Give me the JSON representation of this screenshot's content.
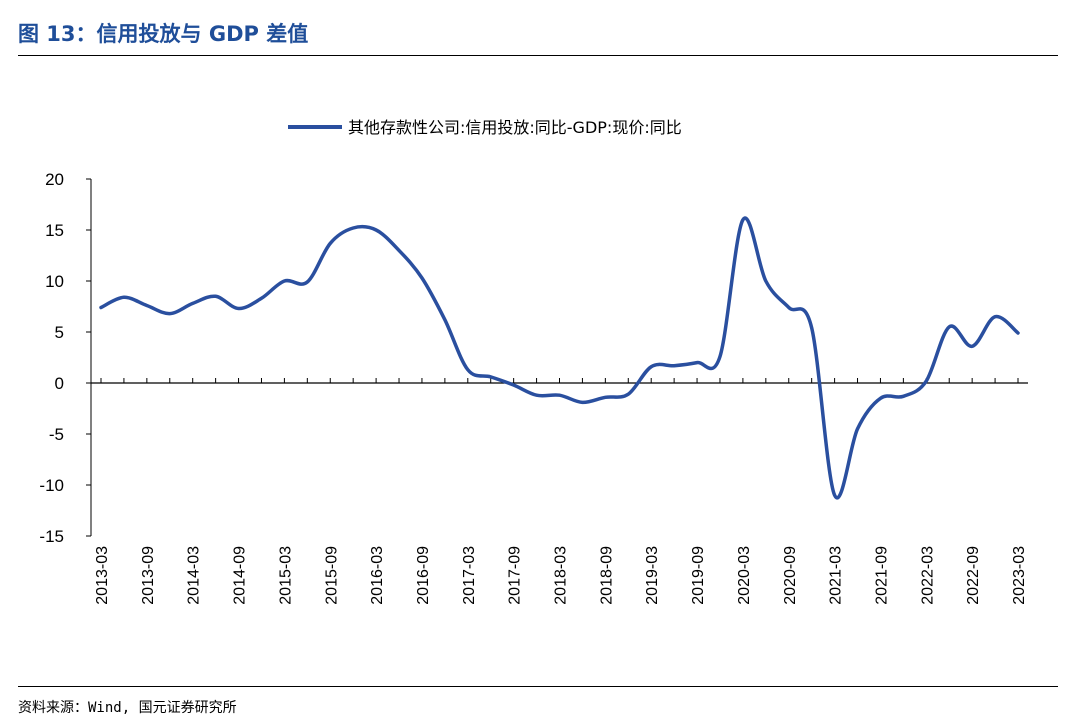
{
  "header": {
    "title": "图 13：信用投放与 GDP 差值"
  },
  "source": "资料来源：Wind, 国元证券研究所",
  "colors": {
    "series": "#2a4f9f",
    "title": "#1f4e99",
    "axis": "#000000"
  },
  "chart_data": {
    "type": "line",
    "title": "",
    "xlabel": "",
    "ylabel": "",
    "ylim": [
      -15,
      20
    ],
    "yticks": [
      -15,
      -10,
      -5,
      0,
      5,
      10,
      15,
      20
    ],
    "grid": false,
    "legend_position": "top-center",
    "categories": [
      "2013-03",
      "2013-06",
      "2013-09",
      "2013-12",
      "2014-03",
      "2014-06",
      "2014-09",
      "2014-12",
      "2015-03",
      "2015-06",
      "2015-09",
      "2015-12",
      "2016-03",
      "2016-06",
      "2016-09",
      "2016-12",
      "2017-03",
      "2017-06",
      "2017-09",
      "2017-12",
      "2018-03",
      "2018-06",
      "2018-09",
      "2018-12",
      "2019-03",
      "2019-06",
      "2019-09",
      "2019-12",
      "2020-03",
      "2020-06",
      "2020-09",
      "2020-12",
      "2021-03",
      "2021-06",
      "2021-09",
      "2021-12",
      "2022-03",
      "2022-06",
      "2022-09",
      "2022-12",
      "2023-03"
    ],
    "xtick_labels": [
      "2013-03",
      "2013-09",
      "2014-03",
      "2014-09",
      "2015-03",
      "2015-09",
      "2016-03",
      "2016-09",
      "2017-03",
      "2017-09",
      "2018-03",
      "2018-09",
      "2019-03",
      "2019-09",
      "2020-03",
      "2020-09",
      "2021-03",
      "2021-09",
      "2022-03",
      "2022-09",
      "2023-03"
    ],
    "series": [
      {
        "name": "其他存款性公司:信用投放:同比-GDP:现价:同比",
        "values": [
          7.4,
          8.4,
          7.6,
          6.8,
          7.8,
          8.5,
          7.3,
          8.3,
          10.0,
          9.9,
          13.7,
          15.2,
          15.0,
          13.0,
          10.3,
          6.2,
          1.3,
          0.6,
          -0.2,
          -1.2,
          -1.2,
          -1.9,
          -1.4,
          -1.1,
          1.6,
          1.7,
          2.0,
          2.6,
          16.0,
          10.0,
          7.4,
          5.4,
          -11.0,
          -4.5,
          -1.5,
          -1.3,
          0.2,
          5.5,
          3.6,
          6.5,
          4.9
        ]
      }
    ]
  }
}
